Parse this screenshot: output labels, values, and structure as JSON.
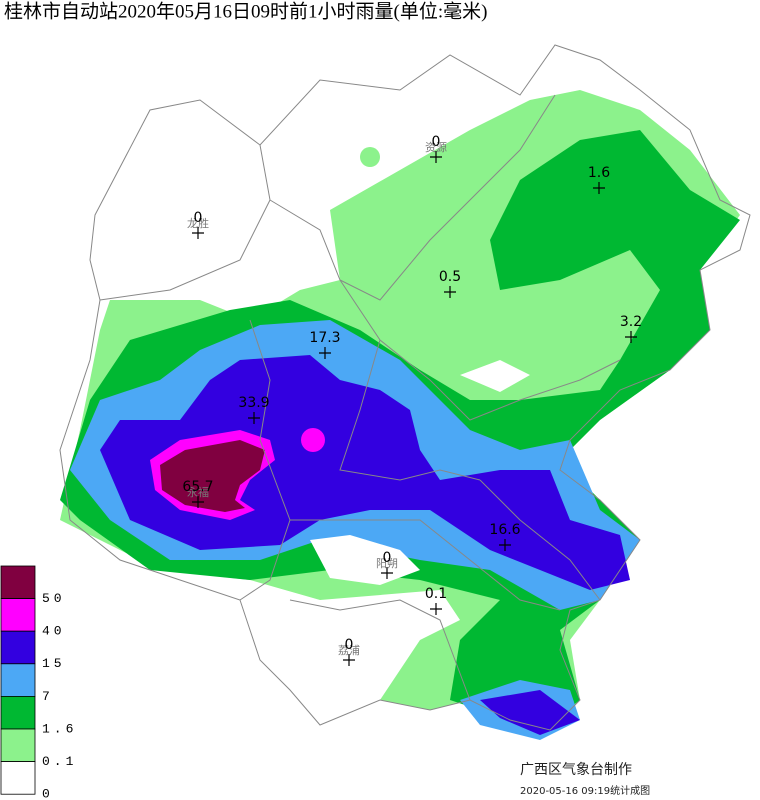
{
  "title": "桂林市自动站2020年05月16日09时前1小时雨量(单位:毫米)",
  "stations": [
    {
      "name": "资源",
      "value": 0
    },
    {
      "value": 1.6
    },
    {
      "name": "龙胜",
      "value": 0
    },
    {
      "value": 0.5
    },
    {
      "value": 3.2
    },
    {
      "value": 17.3
    },
    {
      "value": 33.9
    },
    {
      "name": "永福",
      "value": 65.7
    },
    {
      "value": 16.6
    },
    {
      "name": "阳朔",
      "value": 0
    },
    {
      "value": 0.1
    },
    {
      "name": "荔浦",
      "value": 0
    }
  ],
  "legend": [
    {
      "label": "50",
      "color": "#800040"
    },
    {
      "label": "40",
      "color": "#ff00ff"
    },
    {
      "label": "15",
      "color": "#3300e0"
    },
    {
      "label": "7",
      "color": "#4ca8f5"
    },
    {
      "label": "1.6",
      "color": "#00b832"
    },
    {
      "label": "0.1",
      "color": "#8cf28c"
    },
    {
      "label": "0",
      "color": "#ffffff"
    }
  ],
  "footer": {
    "agency": "广西区气象台制作",
    "timestamp": "2020-05-16 09:19统计成图"
  }
}
